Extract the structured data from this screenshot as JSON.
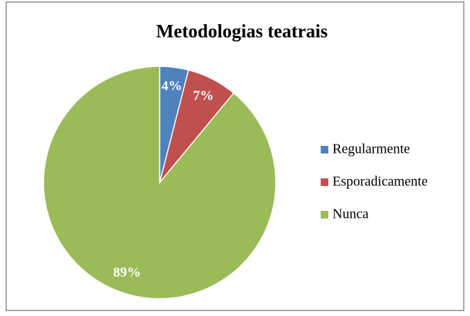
{
  "chart_data": {
    "type": "pie",
    "title": "Metodologias teatrais",
    "categories": [
      "Regularmente",
      "Esporadicamente",
      "Nunca"
    ],
    "values": [
      4,
      7,
      89
    ],
    "value_labels": [
      "4%",
      "7%",
      "89%"
    ],
    "colors": [
      "#4f81bd",
      "#c0504d",
      "#9bbb59"
    ],
    "legend": "right"
  }
}
